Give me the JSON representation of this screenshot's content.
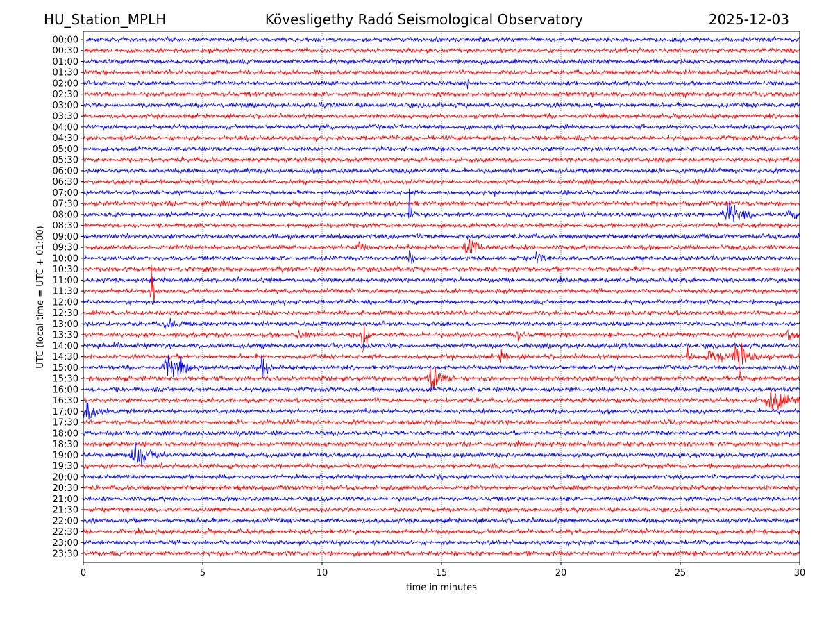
{
  "chart_data": {
    "type": "line",
    "title_left": "HU_Station_MPLH",
    "title_center": "Kövesligethy Radó Seismological Observatory",
    "title_right": "2025-12-03",
    "xlabel": "time in minutes",
    "ylabel": "UTC (local time = UTC + 01:00)",
    "xlim": [
      0,
      30
    ],
    "x_ticks": [
      0,
      5,
      10,
      15,
      20,
      25,
      30
    ],
    "x_tick_labels": [
      "0",
      "5",
      "10",
      "15",
      "20",
      "25",
      "30"
    ],
    "grid": "vertical dotted at x ticks",
    "series_colors": [
      "#0000ff",
      "#ff0000"
    ],
    "y_tick_labels": [
      "00:00",
      "00:30",
      "01:00",
      "01:30",
      "02:00",
      "02:30",
      "03:00",
      "03:30",
      "04:00",
      "04:30",
      "05:00",
      "05:30",
      "06:00",
      "06:30",
      "07:00",
      "07:30",
      "08:00",
      "08:30",
      "09:00",
      "09:30",
      "10:00",
      "10:30",
      "11:00",
      "11:30",
      "12:00",
      "12:30",
      "13:00",
      "13:30",
      "14:00",
      "14:30",
      "15:00",
      "15:30",
      "16:00",
      "16:30",
      "17:00",
      "17:30",
      "18:00",
      "18:30",
      "19:00",
      "19:30",
      "20:00",
      "20:30",
      "21:00",
      "21:30",
      "22:00",
      "22:30",
      "23:00",
      "23:30"
    ],
    "events": [
      {
        "trace": "02:00",
        "minute": 16.0,
        "amplitude": 10,
        "duration": 0.3
      },
      {
        "trace": "08:00",
        "minute": 13.65,
        "amplitude": 45,
        "duration": 0.2
      },
      {
        "trace": "08:00",
        "minute": 27.0,
        "amplitude": 18,
        "duration": 1.2
      },
      {
        "trace": "08:00",
        "minute": 29.6,
        "amplitude": 6,
        "duration": 0.8
      },
      {
        "trace": "09:30",
        "minute": 16.1,
        "amplitude": 14,
        "duration": 1.0
      },
      {
        "trace": "09:30",
        "minute": 16.4,
        "amplitude": 22,
        "duration": 0.1
      },
      {
        "trace": "09:30",
        "minute": 11.5,
        "amplitude": 5,
        "duration": 1.0
      },
      {
        "trace": "10:00",
        "minute": 13.65,
        "amplitude": 28,
        "duration": 0.2
      },
      {
        "trace": "10:00",
        "minute": 19.0,
        "amplitude": 14,
        "duration": 0.3
      },
      {
        "trace": "11:30",
        "minute": 2.85,
        "amplitude": 55,
        "duration": 0.2
      },
      {
        "trace": "13:00",
        "minute": 3.5,
        "amplitude": 6,
        "duration": 1.2
      },
      {
        "trace": "13:30",
        "minute": 11.7,
        "amplitude": 32,
        "duration": 0.3
      },
      {
        "trace": "13:30",
        "minute": 9.0,
        "amplitude": 6,
        "duration": 0.6
      },
      {
        "trace": "13:30",
        "minute": 18.2,
        "amplitude": 8,
        "duration": 0.4
      },
      {
        "trace": "13:30",
        "minute": 29.5,
        "amplitude": 8,
        "duration": 0.5
      },
      {
        "trace": "14:00",
        "minute": 1.3,
        "amplitude": 6,
        "duration": 0.5
      },
      {
        "trace": "14:30",
        "minute": 27.5,
        "amplitude": 70,
        "duration": 0.15
      },
      {
        "trace": "14:30",
        "minute": 27.4,
        "amplitude": 18,
        "duration": 1.2
      },
      {
        "trace": "14:30",
        "minute": 26.3,
        "amplitude": 12,
        "duration": 1.0
      },
      {
        "trace": "14:30",
        "minute": 25.3,
        "amplitude": 10,
        "duration": 0.3
      },
      {
        "trace": "14:30",
        "minute": 17.5,
        "amplitude": 8,
        "duration": 0.5
      },
      {
        "trace": "15:00",
        "minute": 3.6,
        "amplitude": 20,
        "duration": 1.2
      },
      {
        "trace": "15:00",
        "minute": 7.5,
        "amplitude": 26,
        "duration": 0.4
      },
      {
        "trace": "15:30",
        "minute": 14.6,
        "amplitude": 28,
        "duration": 0.8
      },
      {
        "trace": "16:30",
        "minute": 28.9,
        "amplitude": 14,
        "duration": 2.0
      },
      {
        "trace": "17:00",
        "minute": 0.2,
        "amplitude": 14,
        "duration": 1.5
      },
      {
        "trace": "19:00",
        "minute": 2.2,
        "amplitude": 26,
        "duration": 1.0
      },
      {
        "trace": "20:00",
        "minute": 4.2,
        "amplitude": 5,
        "duration": 0.3
      },
      {
        "trace": "20:00",
        "minute": 14.8,
        "amplitude": 5,
        "duration": 0.4
      }
    ]
  }
}
